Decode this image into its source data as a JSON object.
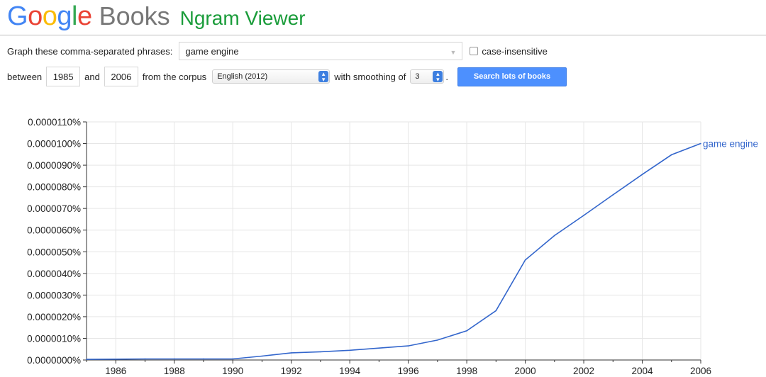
{
  "header": {
    "logo_letters": [
      {
        "ch": "G",
        "color": "#4285f4"
      },
      {
        "ch": "o",
        "color": "#ea4335"
      },
      {
        "ch": "o",
        "color": "#fbbc05"
      },
      {
        "ch": "g",
        "color": "#4285f4"
      },
      {
        "ch": "l",
        "color": "#34a853"
      },
      {
        "ch": "e",
        "color": "#ea4335"
      }
    ],
    "books": "Books",
    "product": "Ngram Viewer"
  },
  "query": {
    "label": "Graph these comma-separated phrases:",
    "phrases": "game engine",
    "case_insensitive_label": "case-insensitive",
    "case_insensitive_checked": false
  },
  "range": {
    "between_label": "between",
    "start_year": "1985",
    "and_label": "and",
    "end_year": "2006",
    "corpus_label": "from the corpus",
    "corpus_value": "English (2012)",
    "smoothing_label": "with smoothing of",
    "smoothing_value": "3",
    "period": ".",
    "search_button": "Search lots of books"
  },
  "colors": {
    "accent": "#4d90fe",
    "series": "#3366cc",
    "brand_green": "#1a9c3a"
  },
  "chart_data": {
    "type": "line",
    "title": "",
    "xlabel": "",
    "ylabel": "",
    "xlim": [
      1985,
      2006
    ],
    "ylim": [
      0,
      1.1e-05
    ],
    "x_ticks": [
      1986,
      1988,
      1990,
      1992,
      1994,
      1996,
      1998,
      2000,
      2002,
      2004,
      2006
    ],
    "y_ticks": [
      "0.0000000%",
      "0.0000010%",
      "0.0000020%",
      "0.0000030%",
      "0.0000040%",
      "0.0000050%",
      "0.0000060%",
      "0.0000070%",
      "0.0000080%",
      "0.0000090%",
      "0.0000100%",
      "0.0000110%"
    ],
    "grid": true,
    "legend": "inline at end of line",
    "series": [
      {
        "name": "game engine",
        "x": [
          1985,
          1986,
          1987,
          1988,
          1989,
          1990,
          1991,
          1992,
          1993,
          1994,
          1995,
          1996,
          1997,
          1998,
          1999,
          2000,
          2001,
          2002,
          2003,
          2004,
          2005,
          2006
        ],
        "values": [
          3e-08,
          4e-08,
          5e-08,
          5e-08,
          5e-08,
          5e-08,
          1.8e-07,
          3.3e-07,
          3.8e-07,
          4.5e-07,
          5.5e-07,
          6.5e-07,
          9.2e-07,
          1.35e-06,
          2.28e-06,
          4.62e-06,
          5.75e-06,
          6.68e-06,
          7.63e-06,
          8.57e-06,
          9.48e-06,
          1e-05
        ]
      }
    ]
  }
}
